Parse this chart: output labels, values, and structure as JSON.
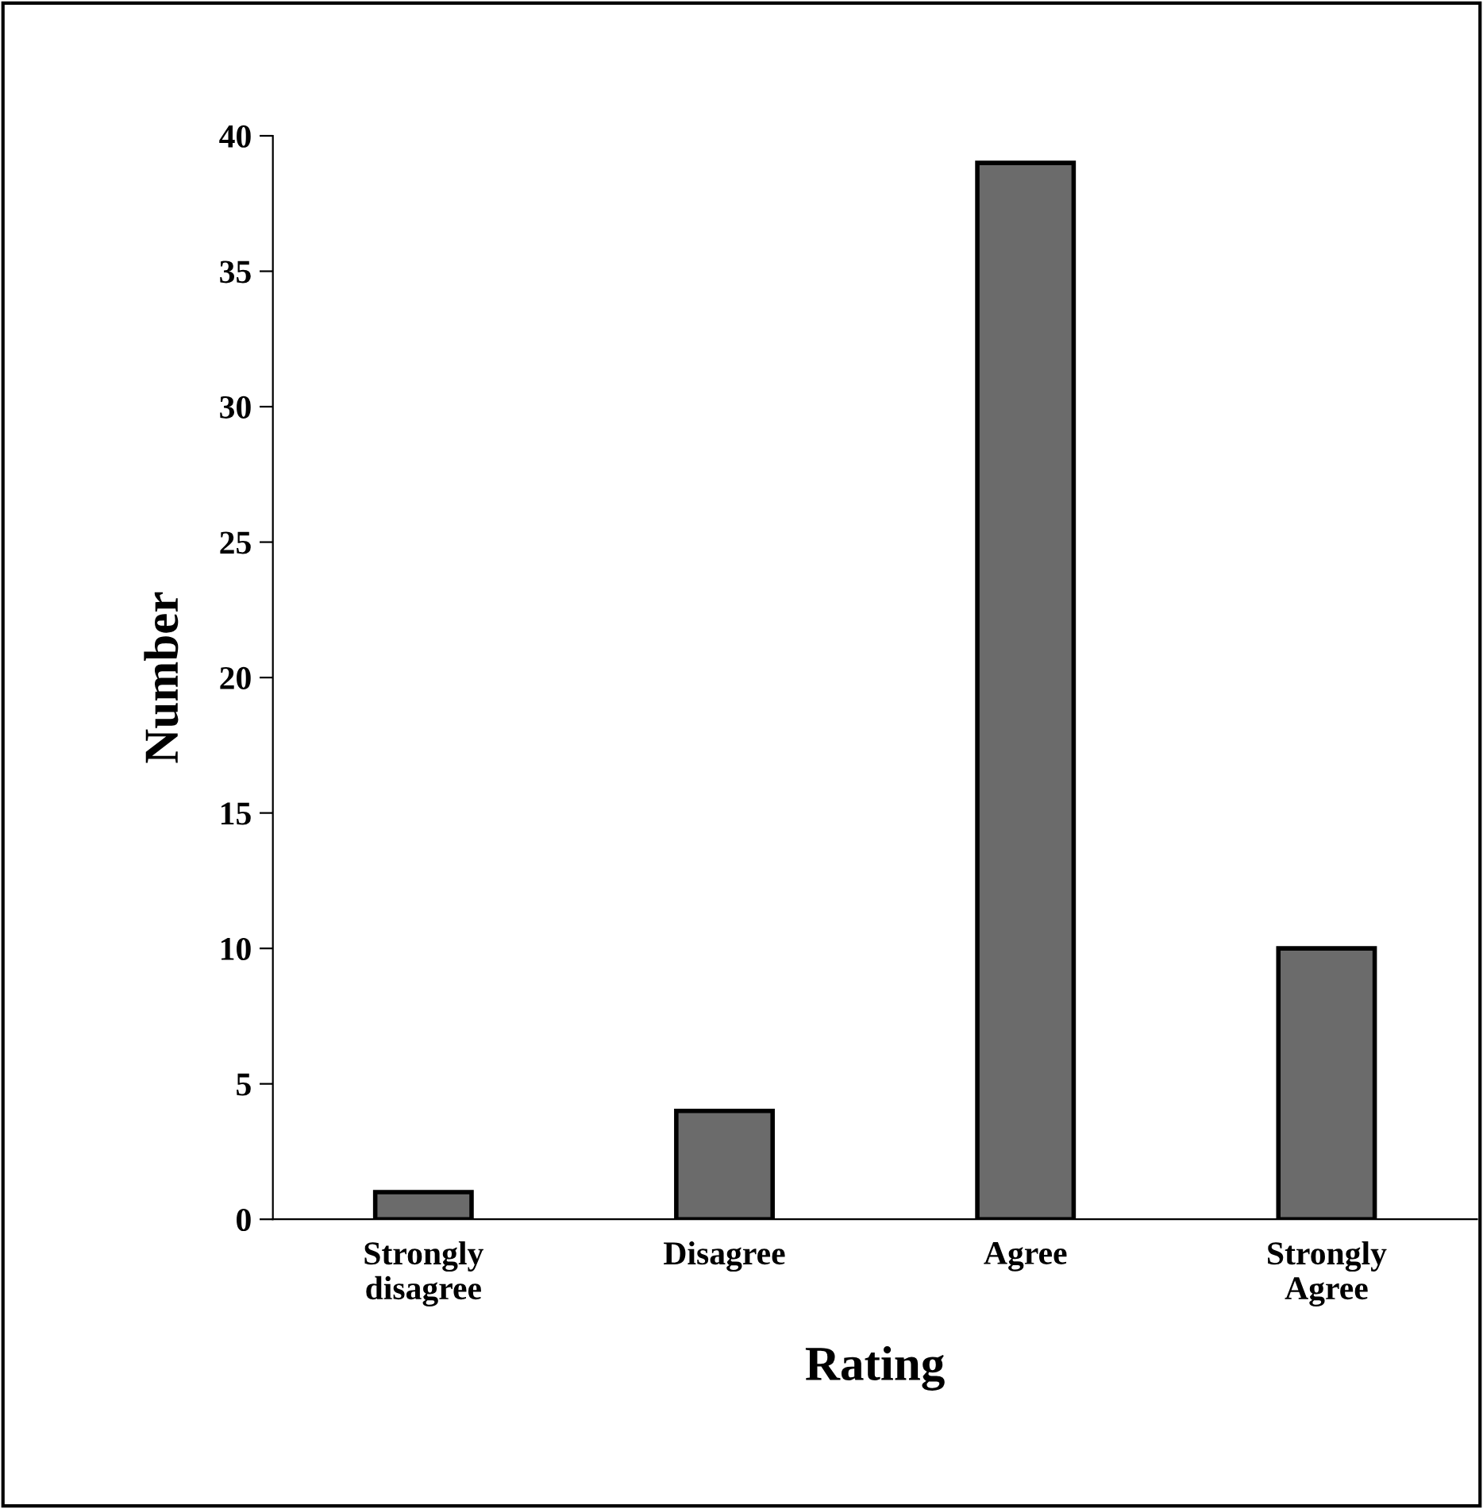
{
  "chart_data": {
    "type": "bar",
    "xlabel": "Rating",
    "ylabel": "Number",
    "categories": [
      "Strongly\ndisagree",
      "Disagree",
      "Agree",
      "Strongly\nAgree"
    ],
    "values": [
      1,
      4,
      39,
      10
    ],
    "color": "#6b6b6b",
    "ylim": [
      0,
      40
    ],
    "yticks": [
      0,
      5,
      10,
      15,
      20,
      25,
      30,
      35,
      40
    ],
    "grid": false,
    "legend": false
  }
}
